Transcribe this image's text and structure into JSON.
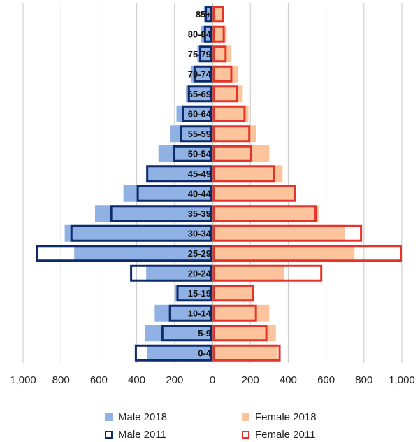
{
  "chart_data": {
    "type": "bar",
    "orientation": "horizontal-population-pyramid",
    "categories": [
      "0-4",
      "5-9",
      "10-14",
      "15-19",
      "20-24",
      "25-29",
      "30-34",
      "35-39",
      "40-44",
      "45-49",
      "50-54",
      "55-59",
      "60-64",
      "65-69",
      "70-74",
      "75-79",
      "80-84",
      "85+"
    ],
    "series": [
      {
        "name": "Male 2018",
        "side": "left",
        "style": "filled",
        "color": "#8fb1e3",
        "values": [
          345,
          355,
          305,
          200,
          350,
          730,
          780,
          620,
          470,
          340,
          285,
          225,
          190,
          140,
          115,
          80,
          60,
          45
        ]
      },
      {
        "name": "Female 2018",
        "side": "right",
        "style": "filled",
        "color": "#fbc49c",
        "values": [
          345,
          335,
          300,
          220,
          380,
          750,
          700,
          560,
          440,
          370,
          300,
          230,
          190,
          160,
          135,
          100,
          75,
          55
        ]
      },
      {
        "name": "Male 2011",
        "side": "left",
        "style": "outline",
        "color": "#0d2a6b",
        "values": [
          410,
          270,
          230,
          190,
          435,
          930,
          750,
          540,
          400,
          350,
          210,
          170,
          160,
          130,
          100,
          70,
          45,
          40
        ]
      },
      {
        "name": "Female 2011",
        "side": "right",
        "style": "outline",
        "color": "#e6332a",
        "values": [
          360,
          290,
          235,
          220,
          580,
          1000,
          790,
          550,
          440,
          330,
          210,
          200,
          175,
          135,
          105,
          75,
          65,
          60
        ]
      }
    ],
    "xlim": [
      -1000,
      1000
    ],
    "x_ticks": [
      "1,000",
      "800",
      "600",
      "400",
      "200",
      "0",
      "200",
      "400",
      "600",
      "800",
      "1,000"
    ],
    "grid": "vertical",
    "legend_position": "bottom"
  }
}
